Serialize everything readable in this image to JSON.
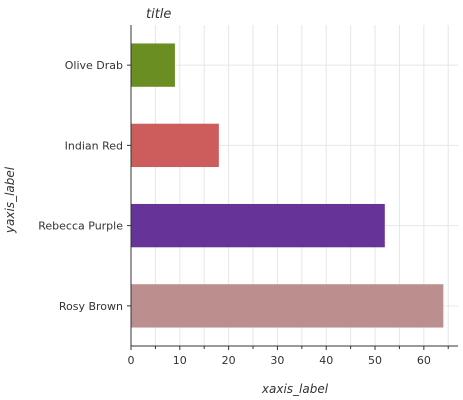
{
  "chart_data": {
    "type": "bar",
    "orientation": "horizontal",
    "title": "title",
    "xlabel": "xaxis_label",
    "ylabel": "yaxis_label",
    "categories": [
      "Rosy Brown",
      "Rebecca Purple",
      "Indian Red",
      "Olive Drab"
    ],
    "values": [
      64,
      52,
      18,
      9
    ],
    "colors": [
      "#bc8f8f",
      "#663399",
      "#cd5c5c",
      "#6b8e23"
    ],
    "xlim": [
      0,
      67
    ],
    "xticks": [
      0,
      10,
      20,
      30,
      40,
      50,
      60
    ],
    "grid": true
  }
}
